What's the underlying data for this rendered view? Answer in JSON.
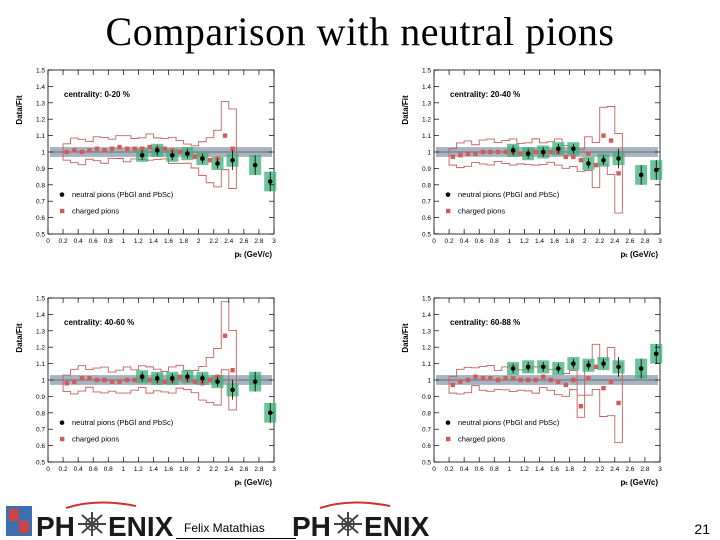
{
  "slide": {
    "title": "Comparison with neutral pions",
    "author": "Felix Matathias",
    "page_number": "21",
    "logo_text_left": "PH",
    "logo_text_right": "ENIX"
  },
  "colors": {
    "neutral": "#000000",
    "charged": "#d45a5a",
    "band_neutral": "#3cb07a",
    "band_ref": "#8a9aaa",
    "sys_outline": "#c06060"
  },
  "chart_data": [
    {
      "type": "scatter",
      "panel": "top-left",
      "label": "centrality: 0-20 %",
      "ylabel": "Data/Fit",
      "xlabel": "p_T (GeV/c)",
      "xlim": [
        0,
        3
      ],
      "ylim": [
        0.5,
        1.5
      ],
      "xticks": [
        "0",
        "0.2",
        "0.4",
        "0.6",
        "0.8",
        "1",
        "1.2",
        "1.4",
        "1.6",
        "1.8",
        "2",
        "2.2",
        "2.4",
        "2.6",
        "2.8",
        "3"
      ],
      "yticks": [
        "0.5",
        "0.6",
        "0.7",
        "0.8",
        "0.9",
        "1",
        "1.1",
        "1.2",
        "1.3",
        "1.4",
        "1.5"
      ],
      "legend": [
        "neutral pions (PbGl and PbSc)",
        "charged pions"
      ],
      "series": [
        {
          "name": "neutral pions (PbGl and PbSc)",
          "x": [
            1.25,
            1.45,
            1.65,
            1.85,
            2.05,
            2.25,
            2.45,
            2.75,
            2.95
          ],
          "y": [
            0.98,
            1.01,
            0.98,
            0.99,
            0.96,
            0.93,
            0.95,
            0.92,
            0.82
          ]
        },
        {
          "name": "charged pions",
          "x": [
            0.25,
            0.35,
            0.45,
            0.55,
            0.65,
            0.75,
            0.85,
            0.95,
            1.05,
            1.15,
            1.25,
            1.35,
            1.45,
            1.55,
            1.65,
            1.75,
            1.85,
            1.95,
            2.05,
            2.15,
            2.25,
            2.35,
            2.45
          ],
          "y": [
            1.0,
            1.01,
            1.0,
            1.01,
            1.02,
            1.01,
            1.02,
            1.03,
            1.02,
            1.02,
            1.02,
            1.03,
            1.02,
            1.02,
            1.01,
            1.0,
            0.99,
            0.97,
            0.96,
            0.95,
            0.96,
            1.1,
            1.02
          ]
        }
      ]
    },
    {
      "type": "scatter",
      "panel": "top-right",
      "label": "centrality: 20-40 %",
      "ylabel": "Data/Fit",
      "xlabel": "p_T (GeV/c)",
      "xlim": [
        0,
        3
      ],
      "ylim": [
        0.5,
        1.5
      ],
      "xticks": [
        "0",
        "0.2",
        "0.4",
        "0.6",
        "0.8",
        "1",
        "1.2",
        "1.4",
        "1.6",
        "1.8",
        "2",
        "2.2",
        "2.4",
        "2.6",
        "2.8",
        "3"
      ],
      "yticks": [
        "0.5",
        "0.6",
        "0.7",
        "0.8",
        "0.9",
        "1",
        "1.1",
        "1.2",
        "1.3",
        "1.4",
        "1.5"
      ],
      "legend": [
        "neutral pions (PbGl and PbSc)",
        "charged pions"
      ],
      "series": [
        {
          "name": "neutral pions (PbGl and PbSc)",
          "x": [
            1.05,
            1.25,
            1.45,
            1.65,
            1.85,
            2.05,
            2.25,
            2.45,
            2.75,
            2.95
          ],
          "y": [
            1.01,
            0.99,
            1.0,
            1.02,
            1.02,
            0.93,
            0.95,
            0.96,
            0.86,
            0.89
          ]
        },
        {
          "name": "charged pions",
          "x": [
            0.25,
            0.35,
            0.45,
            0.55,
            0.65,
            0.75,
            0.85,
            0.95,
            1.05,
            1.15,
            1.25,
            1.35,
            1.45,
            1.55,
            1.65,
            1.75,
            1.85,
            1.95,
            2.05,
            2.15,
            2.25,
            2.35,
            2.45
          ],
          "y": [
            0.97,
            0.98,
            0.99,
            0.99,
            1.0,
            1.0,
            1.0,
            1.0,
            1.0,
            0.99,
            0.99,
            1.0,
            0.99,
            1.0,
            1.0,
            0.97,
            0.97,
            0.95,
            0.99,
            0.92,
            1.1,
            1.07,
            0.87
          ]
        }
      ]
    },
    {
      "type": "scatter",
      "panel": "bottom-left",
      "label": "centrality: 40-60 %",
      "ylabel": "Data/Fit",
      "xlabel": "p_T (GeV/c)",
      "xlim": [
        0,
        3
      ],
      "ylim": [
        0.5,
        1.5
      ],
      "xticks": [
        "0",
        "0.2",
        "0.4",
        "0.6",
        "0.8",
        "1",
        "1.2",
        "1.4",
        "1.6",
        "1.8",
        "2",
        "2.2",
        "2.4",
        "2.6",
        "2.8",
        "3"
      ],
      "yticks": [
        "0.5",
        "0.6",
        "0.7",
        "0.8",
        "0.9",
        "1",
        "1.1",
        "1.2",
        "1.3",
        "1.4",
        "1.5"
      ],
      "legend": [
        "neutral pions (PbGl and PbSc)",
        "charged pions"
      ],
      "series": [
        {
          "name": "neutral pions (PbGl and PbSc)",
          "x": [
            1.25,
            1.45,
            1.65,
            1.85,
            2.05,
            2.25,
            2.45,
            2.75,
            2.95
          ],
          "y": [
            1.02,
            1.01,
            1.01,
            1.02,
            1.01,
            0.99,
            0.94,
            0.99,
            0.8
          ]
        },
        {
          "name": "charged pions",
          "x": [
            0.25,
            0.35,
            0.45,
            0.55,
            0.65,
            0.75,
            0.85,
            0.95,
            1.05,
            1.15,
            1.25,
            1.35,
            1.45,
            1.55,
            1.65,
            1.75,
            1.85,
            1.95,
            2.05,
            2.15,
            2.25,
            2.35,
            2.45
          ],
          "y": [
            0.98,
            0.99,
            1.01,
            1.01,
            1.0,
            1.0,
            0.99,
            0.99,
            1.0,
            1.0,
            1.02,
            1.0,
            1.0,
            0.99,
            1.0,
            1.02,
            1.0,
            0.99,
            0.98,
            1.0,
            1.02,
            1.27,
            1.06
          ]
        }
      ]
    },
    {
      "type": "scatter",
      "panel": "bottom-right",
      "label": "centrality: 60-88 %",
      "ylabel": "Data/Fit",
      "xlabel": "p_T (GeV/c)",
      "xlim": [
        0,
        3
      ],
      "ylim": [
        0.5,
        1.5
      ],
      "xticks": [
        "0",
        "0.2",
        "0.4",
        "0.6",
        "0.8",
        "1",
        "1.2",
        "1.4",
        "1.6",
        "1.8",
        "2",
        "2.2",
        "2.4",
        "2.6",
        "2.8",
        "3"
      ],
      "yticks": [
        "0.5",
        "0.6",
        "0.7",
        "0.8",
        "0.9",
        "1",
        "1.1",
        "1.2",
        "1.3",
        "1.4",
        "1.5"
      ],
      "legend": [
        "neutral pions (PbGl and PbSc)",
        "charged pions"
      ],
      "series": [
        {
          "name": "neutral pions (PbGl and PbSc)",
          "x": [
            1.05,
            1.25,
            1.45,
            1.65,
            1.85,
            2.05,
            2.25,
            2.45,
            2.75,
            2.95
          ],
          "y": [
            1.07,
            1.08,
            1.08,
            1.07,
            1.1,
            1.09,
            1.1,
            1.08,
            1.07,
            1.16
          ]
        },
        {
          "name": "charged pions",
          "x": [
            0.25,
            0.35,
            0.45,
            0.55,
            0.65,
            0.75,
            0.85,
            0.95,
            1.05,
            1.15,
            1.25,
            1.35,
            1.45,
            1.55,
            1.65,
            1.75,
            1.85,
            1.95,
            2.05,
            2.15,
            2.25,
            2.35,
            2.45
          ],
          "y": [
            0.97,
            0.99,
            1.0,
            1.02,
            1.01,
            1.01,
            1.0,
            1.01,
            1.01,
            1.0,
            1.0,
            1.0,
            1.02,
            1.0,
            0.99,
            0.97,
            1.0,
            0.84,
            1.01,
            1.08,
            0.95,
            0.99,
            0.86
          ]
        }
      ]
    }
  ]
}
